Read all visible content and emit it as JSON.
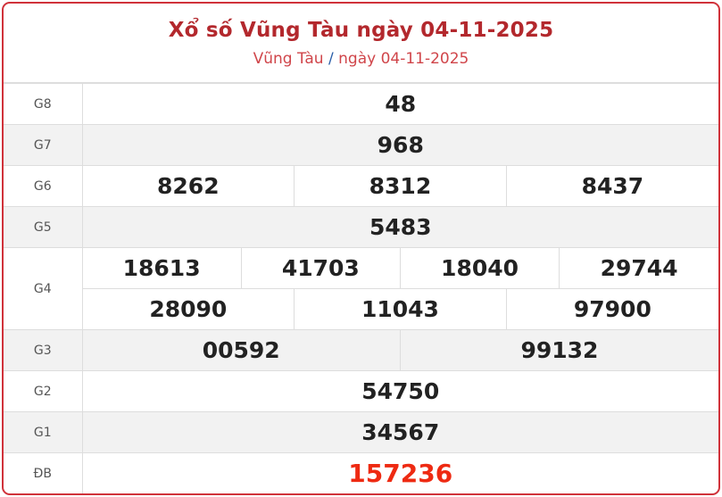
{
  "header": {
    "title": "Xổ số Vũng Tàu ngày 04-11-2025",
    "breadcrumb_location": "Vũng Tàu",
    "breadcrumb_separator": "/",
    "breadcrumb_date": "ngày 04-11-2025"
  },
  "prizes": {
    "g8": {
      "label": "G8",
      "numbers": [
        "48"
      ]
    },
    "g7": {
      "label": "G7",
      "numbers": [
        "968"
      ]
    },
    "g6": {
      "label": "G6",
      "numbers": [
        "8262",
        "8312",
        "8437"
      ]
    },
    "g5": {
      "label": "G5",
      "numbers": [
        "5483"
      ]
    },
    "g4": {
      "label": "G4",
      "numbers": [
        "18613",
        "41703",
        "18040",
        "29744",
        "28090",
        "11043",
        "97900"
      ]
    },
    "g3": {
      "label": "G3",
      "numbers": [
        "00592",
        "99132"
      ]
    },
    "g2": {
      "label": "G2",
      "numbers": [
        "54750"
      ]
    },
    "g1": {
      "label": "G1",
      "numbers": [
        "34567"
      ]
    },
    "db": {
      "label": "ĐB",
      "numbers": [
        "157236"
      ]
    }
  },
  "colors": {
    "border": "#d0323a",
    "title": "#b3282d",
    "special": "#ee2a12",
    "stripe": "#f2f2f2"
  }
}
